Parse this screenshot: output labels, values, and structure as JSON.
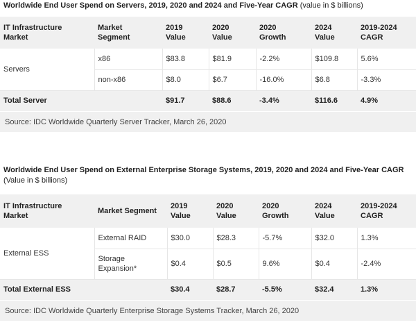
{
  "servers": {
    "title_bold": "Worldwide End User Spend on Servers, 2019, 2020 and 2024 and Five-Year CAGR",
    "title_normal": "(value in $ billions)",
    "headers": [
      "IT Infrastructure\nMarket",
      "Market\nSegment",
      "2019\nValue",
      "2020\nValue",
      "2020\nGrowth",
      "2024\nValue",
      "2019-2024\nCAGR"
    ],
    "group_label": "Servers",
    "rows": [
      [
        "x86",
        "$83.8",
        "$81.9",
        "-2.2%",
        "$109.8",
        "5.6%"
      ],
      [
        "non-x86",
        "$8.0",
        "$6.7",
        "-16.0%",
        "$6.8",
        "-3.3%"
      ]
    ],
    "total": [
      "Total Server",
      "$91.7",
      "$88.6",
      "-3.4%",
      "$116.6",
      "4.9%"
    ],
    "source": "Source: IDC Worldwide Quarterly Server Tracker, March 26, 2020"
  },
  "storage": {
    "title_bold": "Worldwide End User Spend on External Enterprise Storage Systems, 2019, 2020 and 2024 and Five-Year CAGR",
    "title_normal": "(Value in $ billions)",
    "headers": [
      "IT Infrastructure\nMarket",
      "Market Segment",
      "2019\nValue",
      "2020\nValue",
      "2020\nGrowth",
      "2024\nValue",
      "2019-2024\nCAGR"
    ],
    "group_label": "External ESS",
    "rows": [
      [
        "External RAID",
        "$30.0",
        "$28.3",
        "-5.7%",
        "$32.0",
        "1.3%"
      ],
      [
        "Storage\nExpansion*",
        "$0.4",
        "$0.5",
        "9.6%",
        "$0.4",
        "-2.4%"
      ]
    ],
    "total": [
      "Total External ESS",
      "$30.4",
      "$28.7",
      "-5.5%",
      "$32.4",
      "1.3%"
    ],
    "source": "Source: IDC Worldwide Quarterly Enterprise Storage Systems Tracker, March 26, 2020"
  }
}
